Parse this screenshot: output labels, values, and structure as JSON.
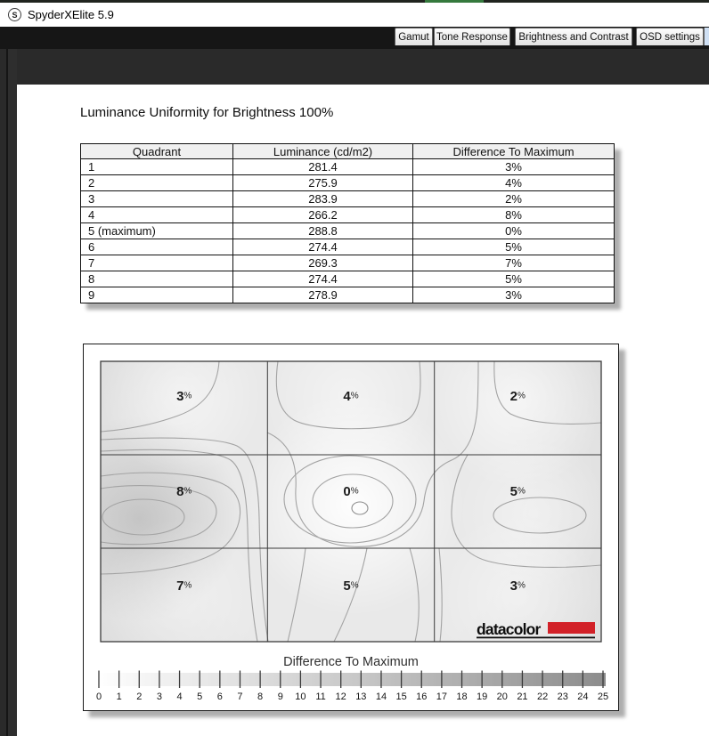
{
  "window": {
    "title": "SpyderXElite 5.9",
    "icon_letter": "S"
  },
  "tabs": [
    {
      "label": "Gamut"
    },
    {
      "label": "Tone Response"
    },
    {
      "label": "Brightness and Contrast"
    },
    {
      "label": "OSD settings"
    }
  ],
  "page": {
    "title": "Luminance Uniformity for Brightness 100%",
    "table": {
      "headers": [
        "Quadrant",
        "Luminance (cd/m2)",
        "Difference To Maximum"
      ],
      "rows": [
        [
          "1",
          "281.4",
          "3%"
        ],
        [
          "2",
          "275.9",
          "4%"
        ],
        [
          "3",
          "283.9",
          "2%"
        ],
        [
          "4",
          "266.2",
          "8%"
        ],
        [
          "5 (maximum)",
          "288.8",
          "0%"
        ],
        [
          "6",
          "274.4",
          "5%"
        ],
        [
          "7",
          "269.3",
          "7%"
        ],
        [
          "8",
          "274.4",
          "5%"
        ],
        [
          "9",
          "278.9",
          "3%"
        ]
      ]
    }
  },
  "chart_data": {
    "type": "heatmap",
    "title": "Luminance Uniformity for Brightness 100%",
    "grid_rows": 3,
    "grid_cols": 3,
    "cell_values_percent": [
      [
        3,
        4,
        2
      ],
      [
        8,
        0,
        5
      ],
      [
        7,
        5,
        3
      ]
    ],
    "cell_label_suffix": "%",
    "quadrant_luminance_cdm2": [
      [
        281.4,
        275.9,
        283.9
      ],
      [
        266.2,
        288.8,
        274.4
      ],
      [
        269.3,
        274.4,
        278.9
      ]
    ],
    "maximum_quadrant": 5,
    "maximum_luminance_cdm2": 288.8,
    "colorbar": {
      "label": "Difference To Maximum",
      "min": 0,
      "max": 25,
      "tick_step": 1,
      "gradient_start": "#ffffff",
      "gradient_end": "#8c8c8c"
    },
    "brand": {
      "text": "datacolor",
      "red": "#d22128"
    }
  }
}
